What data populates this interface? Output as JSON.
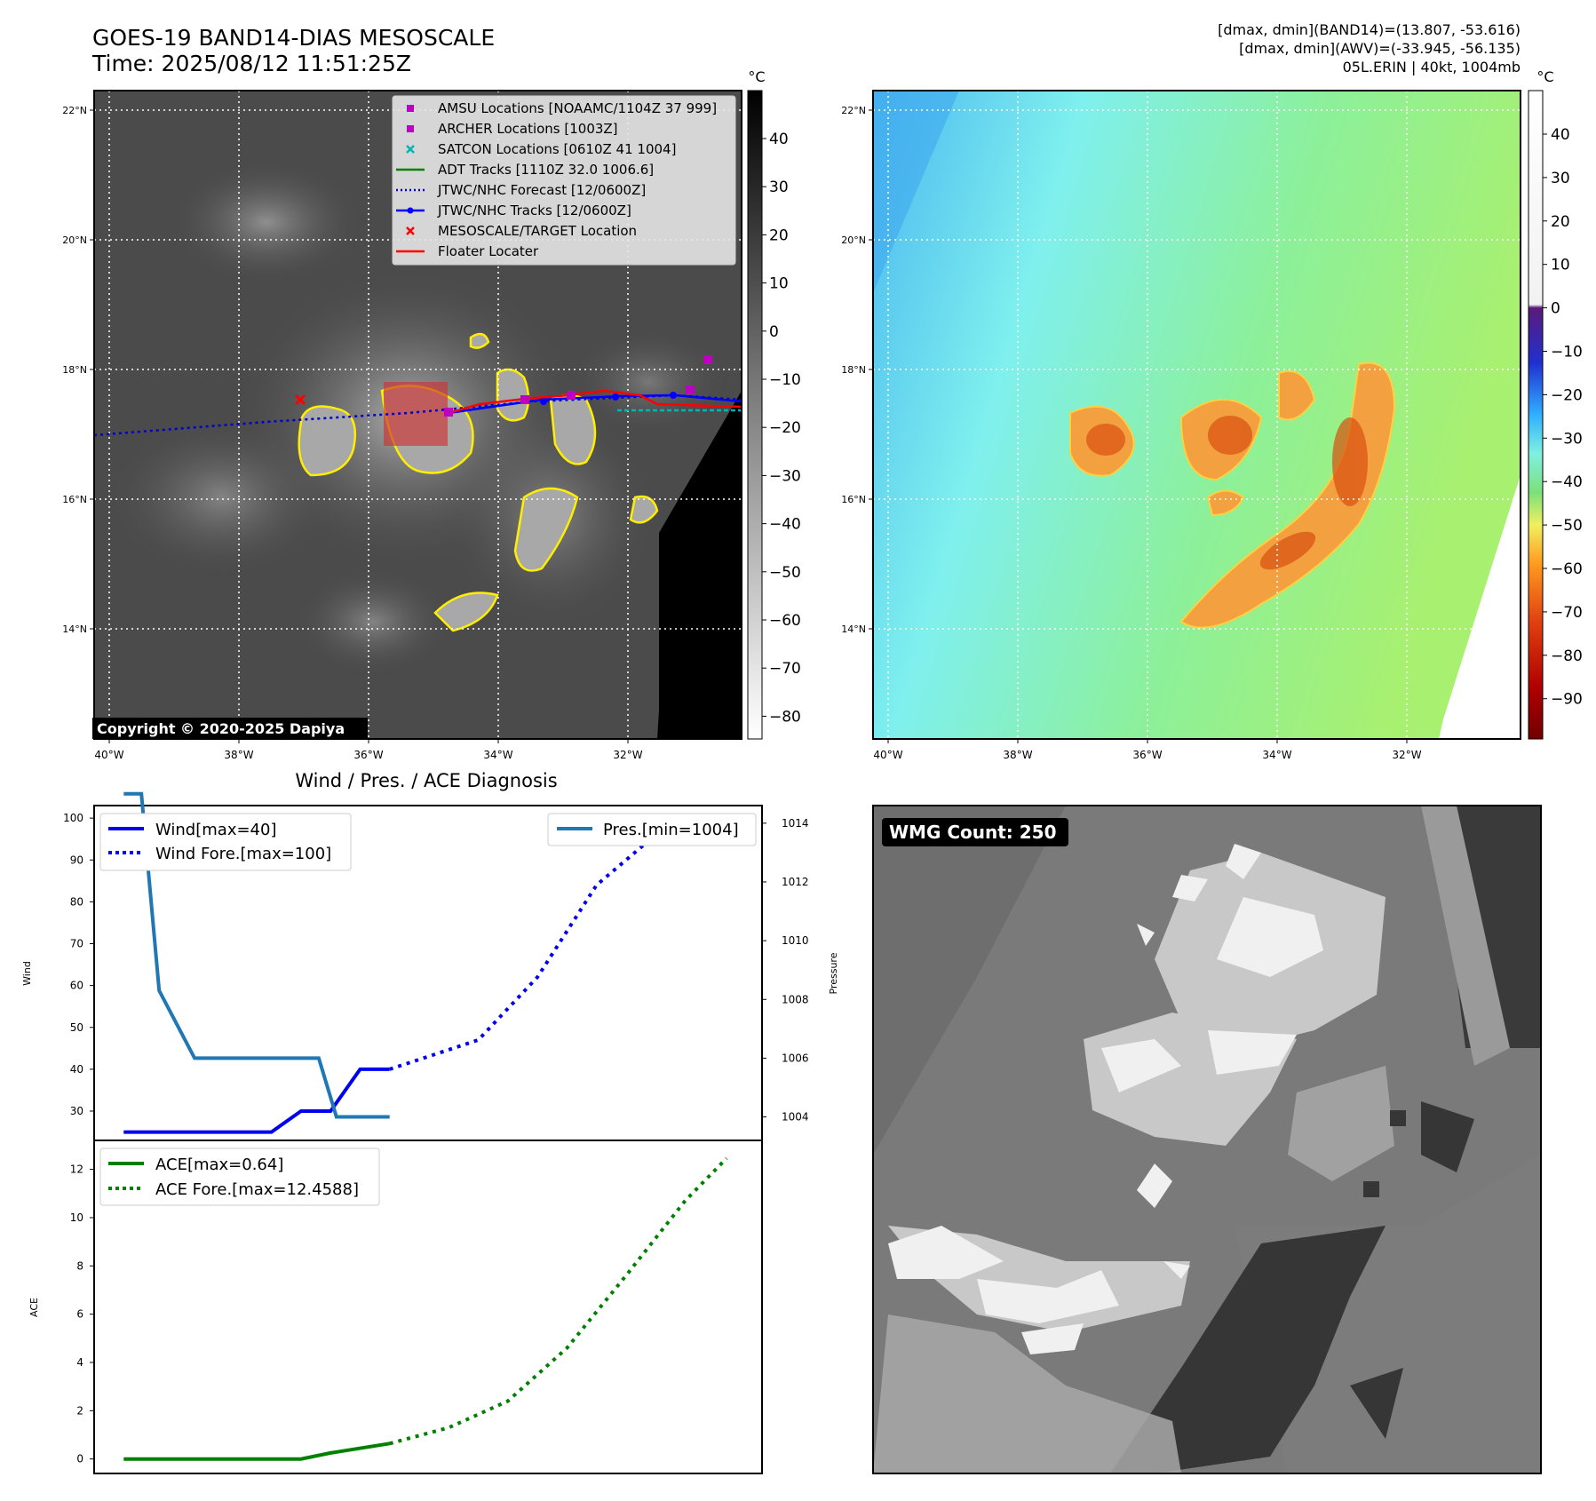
{
  "header": {
    "title_line1": "GOES-19 BAND14-DIAS MESOSCALE",
    "title_line2": "Time: 2025/08/12 11:51:25Z",
    "stats_line1": "[dmax, dmin](BAND14)=(13.807, -53.616)",
    "stats_line2": "[dmax, dmin](AWV)=(-33.945, -56.135)",
    "stats_line3": "05L.ERIN | 40kt, 1004mb"
  },
  "map_axes": {
    "lat_ticks": [
      "22°N",
      "20°N",
      "18°N",
      "16°N",
      "14°N"
    ],
    "lon_ticks": [
      "40°W",
      "38°W",
      "36°W",
      "34°W",
      "32°W"
    ],
    "copyright": "Copyright © 2020-2025 Dapiya"
  },
  "ir_colorbar": {
    "unit": "°C",
    "ticks": [
      "40",
      "30",
      "20",
      "10",
      "0",
      "−10",
      "−20",
      "−30",
      "−40",
      "−50",
      "−60",
      "−70",
      "−80"
    ]
  },
  "awv_colorbar": {
    "unit": "°C",
    "ticks": [
      "40",
      "30",
      "20",
      "10",
      "0",
      "−10",
      "−20",
      "−30",
      "−40",
      "−50",
      "−60",
      "−70",
      "−80",
      "−90"
    ]
  },
  "map_legend": {
    "items": [
      {
        "label": "AMSU Locations [NOAAMC/1104Z 37 999]",
        "marker": "square",
        "color": "#c000c0"
      },
      {
        "label": "ARCHER Locations [1003Z]",
        "marker": "square",
        "color": "#c000c0"
      },
      {
        "label": "SATCON Locations [0610Z 41 1004]",
        "marker": "x",
        "color": "#00b5b5"
      },
      {
        "label": "ADT Tracks [1110Z 32.0 1006.6]",
        "marker": "line",
        "color": "#008000"
      },
      {
        "label": "JTWC/NHC Forecast [12/0600Z]",
        "marker": "dotted",
        "color": "#0000cc"
      },
      {
        "label": "JTWC/NHC Tracks [12/0600Z]",
        "marker": "line-dot",
        "color": "#0000ff"
      },
      {
        "label": "MESOSCALE/TARGET Location",
        "marker": "x",
        "color": "#ff0000"
      },
      {
        "label": "Floater Locater",
        "marker": "line",
        "color": "#ff0000"
      }
    ]
  },
  "wmg": {
    "label": "WMG Count: 250"
  },
  "colors": {
    "wind": "#0000ee",
    "pressure": "#1f77b4",
    "ace": "#008000",
    "cloud_outline": "#ffee00"
  },
  "chart_data": [
    {
      "type": "line",
      "title": "Wind / Pres. / ACE Diagnosis",
      "ylabel": "Wind",
      "y2label": "Pressure",
      "ylim": [
        23,
        103
      ],
      "y2lim": [
        1003.2,
        1014.6
      ],
      "yticks": [
        30,
        40,
        50,
        60,
        70,
        80,
        90,
        100
      ],
      "y2ticks": [
        1004,
        1006,
        1008,
        1010,
        1012,
        1014
      ],
      "xlim": [
        -0.5,
        10.8
      ],
      "series": [
        {
          "name": "Wind[max=40]",
          "style": "solid",
          "axis": "left",
          "x": [
            0,
            1,
            2,
            2.5,
            3,
            3.5,
            4,
            4.5
          ],
          "values": [
            25,
            25,
            25,
            25,
            30,
            30,
            40,
            40
          ]
        },
        {
          "name": "Wind Fore.[max=100]",
          "style": "dotted",
          "axis": "left",
          "x": [
            4.5,
            6,
            7,
            8,
            9,
            10
          ],
          "values": [
            40,
            47,
            62,
            84,
            96,
            100
          ]
        },
        {
          "name": "Pres.[min=1004]",
          "style": "solid",
          "axis": "right",
          "x": [
            0,
            0.3,
            0.6,
            1.2,
            2.4,
            3.3,
            3.6,
            4.5
          ],
          "values": [
            1015,
            1015,
            1008.3,
            1006,
            1006,
            1006,
            1004,
            1004
          ]
        }
      ],
      "legend_left": [
        "Wind[max=40]",
        "Wind Fore.[max=100]"
      ],
      "legend_right": [
        "Pres.[min=1004]"
      ]
    },
    {
      "type": "line",
      "ylabel": "ACE",
      "ylim": [
        -0.6,
        13.2
      ],
      "yticks": [
        0,
        2,
        4,
        6,
        8,
        10,
        12
      ],
      "xlim": [
        -0.5,
        10.8
      ],
      "series": [
        {
          "name": "ACE[max=0.64]",
          "style": "solid",
          "x": [
            0,
            1,
            2,
            3,
            3.5,
            4.5
          ],
          "values": [
            0,
            0,
            0,
            0,
            0.25,
            0.64
          ]
        },
        {
          "name": "ACE Fore.[max=12.4588]",
          "style": "dotted",
          "x": [
            4.5,
            5.5,
            6.5,
            7.5,
            8.5,
            9.5,
            10.2
          ],
          "values": [
            0.64,
            1.3,
            2.4,
            4.6,
            7.6,
            10.7,
            12.4588
          ]
        }
      ],
      "legend": [
        "ACE[max=0.64]",
        "ACE Fore.[max=12.4588]"
      ]
    }
  ]
}
